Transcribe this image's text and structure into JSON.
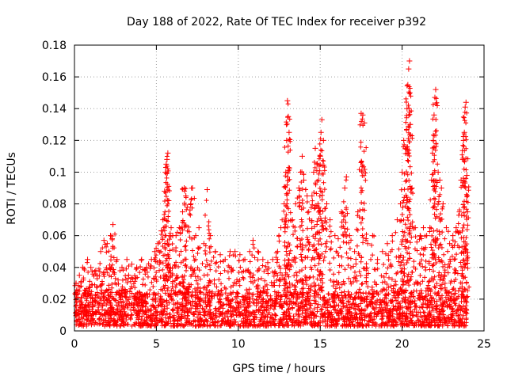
{
  "chart_data": {
    "type": "scatter",
    "title": "Day 188 of 2022, Rate Of TEC Index for receiver p392",
    "xlabel": "GPS time / hours",
    "ylabel": "ROTI / TECUs",
    "xlim": [
      0,
      25
    ],
    "ylim": [
      0,
      0.18
    ],
    "x_ticks": [
      0,
      5,
      10,
      15,
      20,
      25
    ],
    "x_tick_labels": [
      "0",
      "5",
      "10",
      "15",
      "20",
      "25"
    ],
    "y_ticks": [
      0,
      0.02,
      0.04,
      0.06,
      0.08,
      0.1,
      0.12,
      0.14,
      0.16,
      0.18
    ],
    "y_tick_labels": [
      "0",
      "0.02",
      "0.04",
      "0.06",
      "0.08",
      "0.1",
      "0.12",
      "0.14",
      "0.16",
      "0.18"
    ],
    "grid": true,
    "marker": "+",
    "color": "#ff0000",
    "baseline_band": {
      "x_start": 0,
      "x_end": 24,
      "y_low": 0.003,
      "y_high": 0.025
    },
    "series": [
      {
        "name": "ROTI",
        "points": [
          [
            0.1,
            0.03
          ],
          [
            0.3,
            0.035
          ],
          [
            0.5,
            0.04
          ],
          [
            0.8,
            0.045
          ],
          [
            1.0,
            0.04
          ],
          [
            1.3,
            0.038
          ],
          [
            1.6,
            0.05
          ],
          [
            1.8,
            0.057
          ],
          [
            2.0,
            0.055
          ],
          [
            2.2,
            0.06
          ],
          [
            2.3,
            0.058
          ],
          [
            2.35,
            0.067
          ],
          [
            2.6,
            0.045
          ],
          [
            2.9,
            0.04
          ],
          [
            3.2,
            0.045
          ],
          [
            3.5,
            0.042
          ],
          [
            3.8,
            0.04
          ],
          [
            4.1,
            0.045
          ],
          [
            4.4,
            0.04
          ],
          [
            4.7,
            0.045
          ],
          [
            4.9,
            0.05
          ],
          [
            5.1,
            0.055
          ],
          [
            5.3,
            0.063
          ],
          [
            5.4,
            0.07
          ],
          [
            5.5,
            0.088
          ],
          [
            5.55,
            0.1
          ],
          [
            5.6,
            0.105
          ],
          [
            5.65,
            0.108
          ],
          [
            5.7,
            0.112
          ],
          [
            5.75,
            0.082
          ],
          [
            5.9,
            0.065
          ],
          [
            6.0,
            0.06
          ],
          [
            6.2,
            0.06
          ],
          [
            6.4,
            0.065
          ],
          [
            6.6,
            0.075
          ],
          [
            6.7,
            0.09
          ],
          [
            6.8,
            0.085
          ],
          [
            6.9,
            0.078
          ],
          [
            7.1,
            0.08
          ],
          [
            7.2,
            0.09
          ],
          [
            7.4,
            0.06
          ],
          [
            7.6,
            0.065
          ],
          [
            7.9,
            0.055
          ],
          [
            8.1,
            0.089
          ],
          [
            8.3,
            0.06
          ],
          [
            8.6,
            0.05
          ],
          [
            8.9,
            0.048
          ],
          [
            9.2,
            0.045
          ],
          [
            9.5,
            0.05
          ],
          [
            9.8,
            0.05
          ],
          [
            10.1,
            0.048
          ],
          [
            10.4,
            0.045
          ],
          [
            10.7,
            0.05
          ],
          [
            10.9,
            0.057
          ],
          [
            11.2,
            0.05
          ],
          [
            11.5,
            0.045
          ],
          [
            11.8,
            0.043
          ],
          [
            12.1,
            0.045
          ],
          [
            12.4,
            0.05
          ],
          [
            12.6,
            0.065
          ],
          [
            12.8,
            0.08
          ],
          [
            12.9,
            0.1
          ],
          [
            12.95,
            0.12
          ],
          [
            13.0,
            0.145
          ],
          [
            13.05,
            0.135
          ],
          [
            13.1,
            0.125
          ],
          [
            13.3,
            0.07
          ],
          [
            13.5,
            0.08
          ],
          [
            13.7,
            0.09
          ],
          [
            13.8,
            0.1
          ],
          [
            13.9,
            0.11
          ],
          [
            14.0,
            0.095
          ],
          [
            14.2,
            0.085
          ],
          [
            14.3,
            0.075
          ],
          [
            14.5,
            0.085
          ],
          [
            14.6,
            0.1
          ],
          [
            14.7,
            0.115
          ],
          [
            14.8,
            0.105
          ],
          [
            14.9,
            0.095
          ],
          [
            15.0,
            0.11
          ],
          [
            15.05,
            0.125
          ],
          [
            15.1,
            0.133
          ],
          [
            15.2,
            0.12
          ],
          [
            15.4,
            0.08
          ],
          [
            15.6,
            0.07
          ],
          [
            15.9,
            0.06
          ],
          [
            16.1,
            0.058
          ],
          [
            16.3,
            0.075
          ],
          [
            16.5,
            0.09
          ],
          [
            16.6,
            0.097
          ],
          [
            16.8,
            0.06
          ],
          [
            17.1,
            0.05
          ],
          [
            17.3,
            0.075
          ],
          [
            17.5,
            0.137
          ],
          [
            17.6,
            0.136
          ],
          [
            17.7,
            0.131
          ],
          [
            17.9,
            0.055
          ],
          [
            18.2,
            0.06
          ],
          [
            18.5,
            0.045
          ],
          [
            18.8,
            0.05
          ],
          [
            19.1,
            0.055
          ],
          [
            19.4,
            0.06
          ],
          [
            19.7,
            0.07
          ],
          [
            19.9,
            0.08
          ],
          [
            20.0,
            0.1
          ],
          [
            20.1,
            0.12
          ],
          [
            20.2,
            0.115
          ],
          [
            20.3,
            0.14
          ],
          [
            20.35,
            0.155
          ],
          [
            20.4,
            0.165
          ],
          [
            20.45,
            0.17
          ],
          [
            20.5,
            0.13
          ],
          [
            20.6,
            0.09
          ],
          [
            20.8,
            0.065
          ],
          [
            21.1,
            0.06
          ],
          [
            21.3,
            0.065
          ],
          [
            21.5,
            0.06
          ],
          [
            21.7,
            0.065
          ],
          [
            21.8,
            0.095
          ],
          [
            21.9,
            0.12
          ],
          [
            21.95,
            0.136
          ],
          [
            22.0,
            0.147
          ],
          [
            22.05,
            0.152
          ],
          [
            22.2,
            0.1
          ],
          [
            22.3,
            0.095
          ],
          [
            22.4,
            0.09
          ],
          [
            22.5,
            0.08
          ],
          [
            22.7,
            0.065
          ],
          [
            22.9,
            0.055
          ],
          [
            23.1,
            0.06
          ],
          [
            23.3,
            0.065
          ],
          [
            23.5,
            0.075
          ],
          [
            23.6,
            0.095
          ],
          [
            23.7,
            0.108
          ],
          [
            23.75,
            0.12
          ],
          [
            23.8,
            0.125
          ],
          [
            23.85,
            0.141
          ],
          [
            23.9,
            0.144
          ],
          [
            23.95,
            0.098
          ],
          [
            24.0,
            0.075
          ]
        ]
      }
    ]
  }
}
